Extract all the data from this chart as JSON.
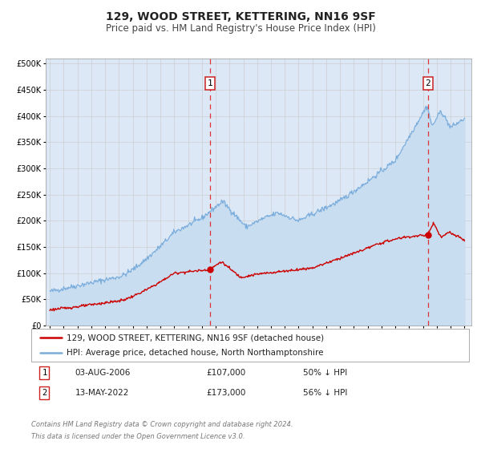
{
  "title": "129, WOOD STREET, KETTERING, NN16 9SF",
  "subtitle": "Price paid vs. HM Land Registry's House Price Index (HPI)",
  "legend_line1": "129, WOOD STREET, KETTERING, NN16 9SF (detached house)",
  "legend_line2": "HPI: Average price, detached house, North Northamptonshire",
  "annotation1_date": "03-AUG-2006",
  "annotation1_price": "£107,000",
  "annotation1_hpi": "50% ↓ HPI",
  "annotation2_date": "13-MAY-2022",
  "annotation2_price": "£173,000",
  "annotation2_hpi": "56% ↓ HPI",
  "footer1": "Contains HM Land Registry data © Crown copyright and database right 2024.",
  "footer2": "This data is licensed under the Open Government Licence v3.0.",
  "property_color": "#cc0000",
  "hpi_color": "#7aacdc",
  "hpi_fill_color": "#c8ddf0",
  "background_color": "#dce8f5",
  "plot_bg_color": "#ffffff",
  "marker1_date_num": 2006.58,
  "marker1_value": 107000,
  "marker2_date_num": 2022.36,
  "marker2_value": 173000,
  "vline1_date_num": 2006.58,
  "vline2_date_num": 2022.36,
  "title_fontsize": 10,
  "subtitle_fontsize": 8.5,
  "tick_fontsize": 7,
  "legend_fontsize": 7.5,
  "annotation_fontsize": 7.5,
  "footer_fontsize": 6
}
